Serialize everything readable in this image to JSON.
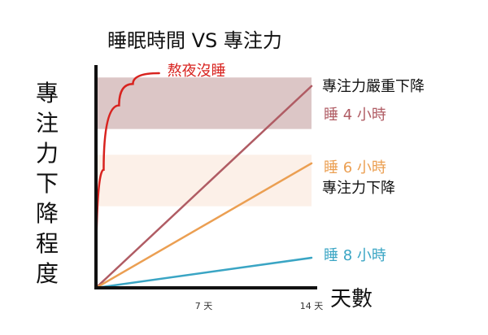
{
  "chart_data": {
    "type": "line",
    "title": "睡眠時間 VS 專注力",
    "ylabel": "專注力下降程度",
    "xlabel": "天數",
    "x_ticks": [
      {
        "value": 7,
        "label": "7 天"
      },
      {
        "value": 14,
        "label": "14 天"
      }
    ],
    "xlim": [
      0,
      14.5
    ],
    "ylim": [
      0,
      100
    ],
    "grid": false,
    "bands": [
      {
        "name": "severe-decline-band",
        "range": [
          74,
          98
        ],
        "color": "#dcc6c6",
        "label": "專注力嚴重下降"
      },
      {
        "name": "decline-band",
        "range": [
          38,
          62
        ],
        "color": "#fcf0e8",
        "label": "專注力下降"
      }
    ],
    "series": [
      {
        "name": "熬夜沒睡",
        "color": "#d8231f",
        "type": "curve",
        "points": [
          [
            0,
            0
          ],
          [
            0.5,
            55
          ],
          [
            1.5,
            85
          ],
          [
            2.4,
            95
          ],
          [
            4.1,
            100
          ]
        ]
      },
      {
        "name": "睡 4 小時",
        "color": "#b05c64",
        "type": "linear",
        "points": [
          [
            0,
            0
          ],
          [
            14,
            94
          ]
        ]
      },
      {
        "name": "睡 6 小時",
        "color": "#eb9f52",
        "type": "linear",
        "points": [
          [
            0,
            0
          ],
          [
            14,
            58
          ]
        ]
      },
      {
        "name": "睡 8 小時",
        "color": "#3aa5c4",
        "type": "linear",
        "points": [
          [
            0,
            0
          ],
          [
            14,
            14
          ]
        ]
      }
    ]
  }
}
